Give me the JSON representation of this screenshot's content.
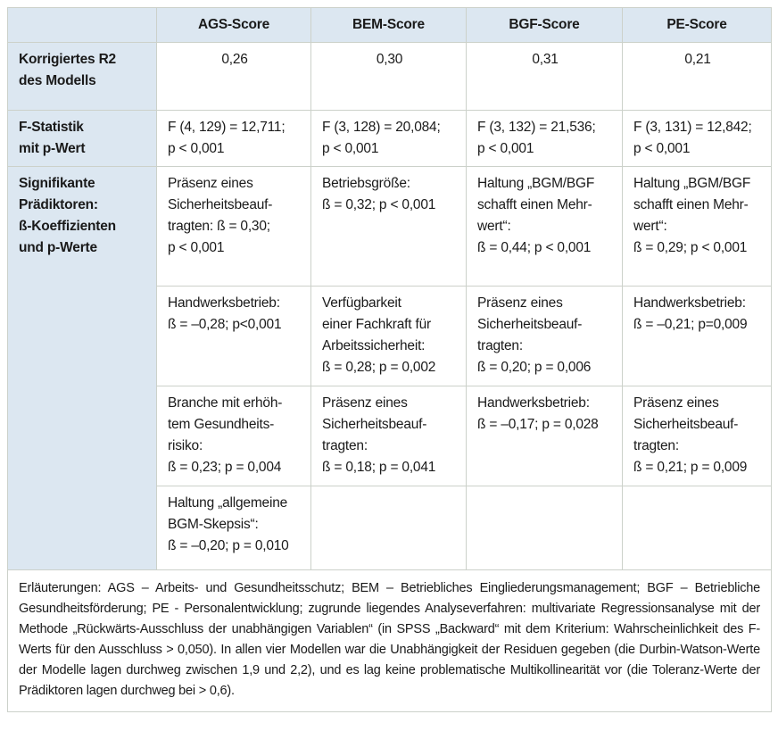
{
  "colors": {
    "header_bg": "#dce7f1",
    "cell_bg": "#ffffff",
    "border_inner": "#ccd1ca",
    "border_outer": "#a9ada7",
    "text": "#1a1a1a"
  },
  "table": {
    "columns": [
      "",
      "AGS-Score",
      "BEM-Score",
      "BGF-Score",
      "PE-Score"
    ],
    "rows": {
      "r2": {
        "label": "Korrigiertes R2\ndes Modells",
        "cells": [
          "0,26",
          "0,30",
          "0,31",
          "0,21"
        ]
      },
      "fstat": {
        "label": "F-Statistik\nmit p-Wert",
        "cells": [
          "F (4, 129) = 12,711;\np < 0,001",
          "F (3, 128) = 20,084;\np < 0,001",
          "F (3, 132) = 21,536;\np < 0,001",
          "F (3, 131) = 12,842;\np < 0,001"
        ]
      },
      "predictors": {
        "label": "Signifikante\nPrädiktoren:\nß-Koeffizienten\nund p-Werte",
        "subrows": [
          [
            "Präsenz eines\nSicherheitsbeauf-\ntragten: ß = 0,30;\np < 0,001",
            "Betriebsgröße:\nß = 0,32; p < 0,001",
            "Haltung „BGM/BGF\nschafft einen Mehr-\nwert“:\nß = 0,44; p < 0,001",
            "Haltung „BGM/BGF\nschafft einen Mehr-\nwert“:\nß = 0,29; p < 0,001"
          ],
          [
            "Handwerksbetrieb:\nß = –0,28; p<0,001",
            "Verfügbarkeit\neiner Fachkraft für\nArbeitssicherheit:\nß = 0,28; p = 0,002",
            "Präsenz eines\nSicherheitsbeauf-\ntragten:\nß = 0,20; p = 0,006",
            "Handwerksbetrieb:\nß = –0,21; p=0,009"
          ],
          [
            "Branche mit erhöh-\ntem Gesundheits-\nrisiko:\nß = 0,23; p = 0,004",
            "Präsenz eines\nSicherheitsbeauf-\ntragten:\nß = 0,18; p = 0,041",
            "Handwerksbetrieb:\nß = –0,17; p = 0,028",
            "Präsenz eines\nSicherheitsbeauf-\ntragten:\nß = 0,21; p = 0,009"
          ],
          [
            "Haltung „allgemeine\nBGM-Skepsis“:\nß = –0,20; p = 0,010",
            "",
            "",
            ""
          ]
        ]
      }
    },
    "footnote": "Erläuterungen: AGS – Arbeits- und Gesundheitsschutz; BEM – Betriebliches Eingliederungsmanagement; BGF – Betriebliche Gesundheitsförderung; PE - Personalentwicklung; zugrunde liegendes Analyseverfahren: multivariate Regressionsanalyse mit der Methode „Rückwärts-Ausschluss der unabhängigen Variablen“ (in SPSS „Backward“ mit dem Kriterium: Wahrscheinlichkeit des F-Werts für den Ausschluss > 0,050). In allen vier Modellen war die Unabhängigkeit der Residuen gegeben (die Durbin-Watson-Werte der Modelle lagen durchweg zwischen 1,9 und 2,2), und es lag keine problematische Multikollinearität vor (die Toleranz-Werte der Prädiktoren lagen durchweg bei > 0,6)."
  }
}
